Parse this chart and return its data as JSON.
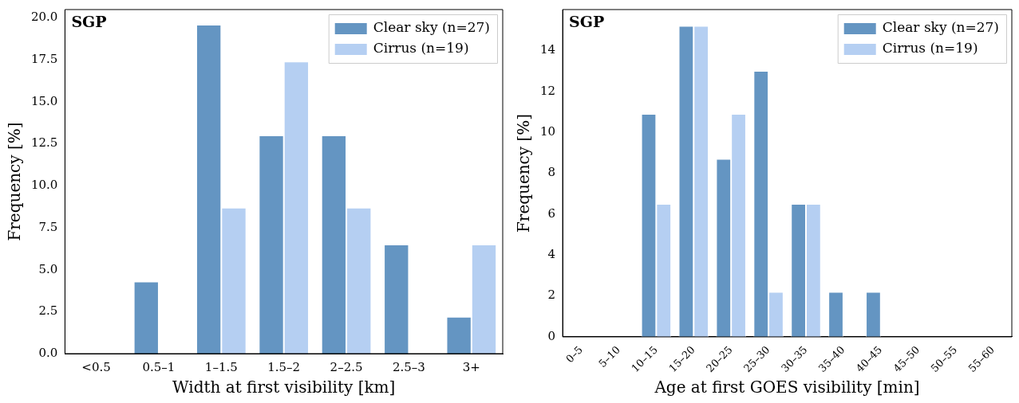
{
  "chart_data": [
    {
      "type": "bar",
      "annotations": [
        "SGP"
      ],
      "xlabel": "Width at first visibility [km]",
      "ylabel": "Frequency [%]",
      "categories": [
        "<0.5",
        "0.5–1",
        "1–1.5",
        "1.5–2",
        "2–2.5",
        "2.5–3",
        "3+"
      ],
      "series": [
        {
          "name": "Clear sky (n=27)",
          "color": "#6495c2",
          "values": [
            0,
            4.3,
            19.6,
            13.0,
            13.0,
            6.5,
            2.2
          ]
        },
        {
          "name": "Cirrus (n=19)",
          "color": "#b5cff2",
          "values": [
            0,
            0,
            8.7,
            17.4,
            8.7,
            0,
            6.5
          ]
        }
      ],
      "ylim": [
        0,
        20.5
      ],
      "yticks": [
        {
          "value": 0,
          "label": "0.0"
        },
        {
          "value": 2.5,
          "label": "2.5"
        },
        {
          "value": 5,
          "label": "5.0"
        },
        {
          "value": 7.5,
          "label": "7.5"
        },
        {
          "value": 10,
          "label": "10.0"
        },
        {
          "value": 12.5,
          "label": "12.5"
        },
        {
          "value": 15,
          "label": "15.0"
        },
        {
          "value": 17.5,
          "label": "17.5"
        },
        {
          "value": 20,
          "label": "20.0"
        }
      ],
      "grid": false,
      "legend": "top right"
    },
    {
      "type": "bar",
      "annotations": [
        "SGP"
      ],
      "xlabel": "Age at first GOES visibility [min]",
      "ylabel": "Frequency [%]",
      "categories": [
        "0–5",
        "5–10",
        "10–15",
        "15–20",
        "20–25",
        "25–30",
        "30–35",
        "35–40",
        "40–45",
        "45–50",
        "50–55",
        "55–60"
      ],
      "series": [
        {
          "name": "Clear sky (n=27)",
          "color": "#6495c2",
          "values": [
            0,
            0,
            10.9,
            15.2,
            8.7,
            13.0,
            6.5,
            2.2,
            2.2,
            0,
            0,
            0
          ]
        },
        {
          "name": "Cirrus (n=19)",
          "color": "#b5cff2",
          "values": [
            0,
            0,
            6.5,
            15.2,
            10.9,
            2.2,
            6.5,
            0,
            0,
            0,
            0,
            0
          ]
        }
      ],
      "ylim": [
        0,
        16
      ],
      "yticks": [
        0,
        2,
        4,
        6,
        8,
        10,
        12,
        14
      ],
      "grid": false,
      "legend": "top right"
    }
  ]
}
